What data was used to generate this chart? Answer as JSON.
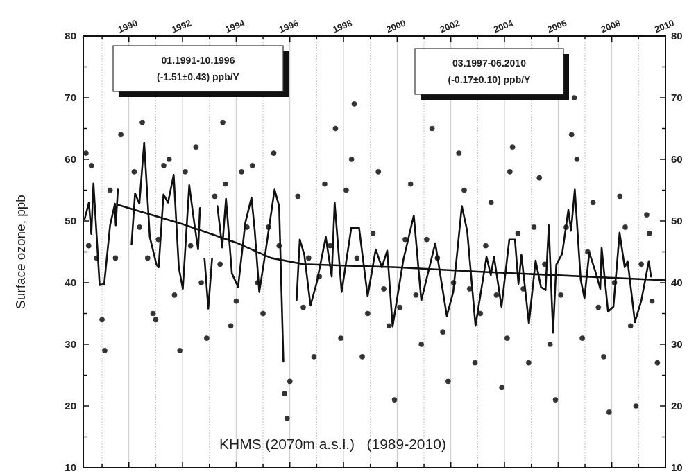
{
  "chart_data": {
    "type": "line",
    "ylabel": "Surface ozone, ppb",
    "annotations": [
      "01.1991-10.1996\n(-1.51±0.43) ppb/Y",
      "03.1997-06.2010\n(-0.17±0.10) ppb/Y",
      "KHMS (2070m a.s.l.)   (1989-2010)"
    ],
    "xlim": [
      1988.3,
      2010
    ],
    "xticks": [
      {
        "value": 1989,
        "label": null
      },
      1990,
      {
        "value": 1991,
        "label": null
      },
      1992,
      {
        "value": 1993,
        "label": null
      },
      1994,
      {
        "value": 1995,
        "label": null
      },
      1996,
      {
        "value": 1997,
        "label": null
      },
      1998,
      {
        "value": 1999,
        "label": null
      },
      2000,
      {
        "value": 2001,
        "label": null
      },
      2002,
      {
        "value": 2003,
        "label": null
      },
      2004,
      {
        "value": 2005,
        "label": null
      },
      2006,
      {
        "value": 2007,
        "label": null
      },
      2008,
      {
        "value": 2009,
        "label": null
      },
      2010
    ],
    "ylim": [
      10,
      80
    ],
    "yticks": [
      10,
      {
        "value": 15,
        "label": null
      },
      20,
      {
        "value": 25,
        "label": null
      },
      30,
      {
        "value": 35,
        "label": null
      },
      40,
      {
        "value": 45,
        "label": null
      },
      50,
      {
        "value": 55,
        "label": null
      },
      60,
      {
        "value": 65,
        "label": null
      },
      70,
      {
        "value": 75,
        "label": null
      },
      80
    ],
    "y2lim": [
      10,
      80
    ],
    "y2ticks": [
      10,
      {
        "value": 15,
        "label": null
      },
      20,
      {
        "value": 25,
        "label": null
      },
      30,
      {
        "value": 35,
        "label": null
      },
      40,
      {
        "value": 45,
        "label": null
      },
      50,
      {
        "value": 55,
        "label": null
      },
      60,
      {
        "value": 65,
        "label": null
      },
      70,
      {
        "value": 75,
        "label": null
      },
      80
    ],
    "grid": "x",
    "series": [
      {
        "type": "scatter",
        "marker": "circle",
        "color": "#333333",
        "x": [
          1988.4,
          1988.5,
          1988.6,
          1988.8,
          1989.0,
          1989.1,
          1989.3,
          1989.5,
          1989.7,
          1990.2,
          1990.4,
          1990.5,
          1990.7,
          1990.9,
          1991.0,
          1991.1,
          1991.3,
          1991.5,
          1991.7,
          1991.9,
          1992.1,
          1992.3,
          1992.5,
          1992.7,
          1992.9,
          1993.2,
          1993.4,
          1993.5,
          1993.6,
          1993.8,
          1994.0,
          1994.2,
          1994.4,
          1994.6,
          1994.8,
          1995.0,
          1995.2,
          1995.4,
          1995.6,
          1995.8,
          1995.9,
          1996.0,
          1996.3,
          1996.5,
          1996.7,
          1996.9,
          1997.1,
          1997.3,
          1997.5,
          1997.7,
          1997.9,
          1998.1,
          1998.3,
          1998.4,
          1998.5,
          1998.7,
          1998.9,
          1999.1,
          1999.3,
          1999.5,
          1999.7,
          1999.9,
          2000.1,
          2000.3,
          2000.5,
          2000.7,
          2000.9,
          2001.1,
          2001.3,
          2001.5,
          2001.7,
          2001.9,
          2002.1,
          2002.3,
          2002.5,
          2002.7,
          2002.9,
          2003.1,
          2003.3,
          2003.5,
          2003.7,
          2003.9,
          2004.1,
          2004.2,
          2004.3,
          2004.5,
          2004.7,
          2004.9,
          2005.1,
          2005.3,
          2005.5,
          2005.7,
          2005.9,
          2006.1,
          2006.3,
          2006.5,
          2006.6,
          2006.7,
          2006.9,
          2007.1,
          2007.3,
          2007.5,
          2007.7,
          2007.9,
          2008.1,
          2008.3,
          2008.5,
          2008.7,
          2008.9,
          2009.1,
          2009.3,
          2009.4,
          2009.5,
          2009.7
        ],
        "values": [
          61,
          46,
          59,
          44,
          34,
          29,
          55,
          44,
          64,
          58,
          49,
          66,
          44,
          35,
          34,
          47,
          59,
          60,
          38,
          29,
          58,
          46,
          62,
          40,
          31,
          54,
          43,
          66,
          56,
          33,
          37,
          58,
          49,
          59,
          40,
          35,
          49,
          61,
          46,
          22,
          18,
          24,
          54,
          36,
          44,
          28,
          41,
          56,
          46,
          65,
          31,
          55,
          60,
          69,
          44,
          28,
          35,
          48,
          58,
          39,
          33,
          21,
          36,
          47,
          56,
          38,
          30,
          47,
          65,
          44,
          32,
          24,
          40,
          61,
          55,
          39,
          27,
          35,
          46,
          53,
          38,
          23,
          31,
          58,
          62,
          48,
          39,
          27,
          49,
          57,
          43,
          30,
          21,
          38,
          49,
          64,
          70,
          60,
          31,
          45,
          53,
          36,
          28,
          19,
          40,
          54,
          49,
          33,
          20,
          43,
          51,
          48,
          37,
          27
        ]
      },
      {
        "marker": "none",
        "color": "#111111",
        "x": [
          1988.35,
          1988.51,
          1988.6,
          1988.68,
          1988.91,
          1989.08,
          1989.3,
          1989.48,
          1989.51,
          1989.59,
          1989.85,
          1990.1,
          1990.23,
          1990.39,
          1990.57,
          1990.78,
          1991.03,
          1991.11,
          1991.29,
          1991.46,
          1991.67,
          1991.86,
          1992.01,
          1992.25,
          1992.43,
          1992.58,
          1992.65,
          1992.74,
          1992.82,
          1992.96,
          1993.1,
          1993.2,
          1993.3,
          1993.48,
          1993.62,
          1993.84,
          1994.07,
          1994.34,
          1994.57,
          1994.69,
          1994.86,
          1995.09,
          1995.43,
          1995.6,
          1995.76,
          1996.0,
          1996.25,
          1996.37,
          1996.54,
          1996.77,
          1997.0,
          1997.34,
          1997.56,
          1997.67,
          1997.93,
          1998.29,
          1998.58,
          1998.9,
          1999.2,
          1999.43,
          1999.63,
          1999.83,
          2000.23,
          2000.62,
          2000.9,
          2001.42,
          2001.85,
          2002.09,
          2002.41,
          2002.61,
          2002.92,
          2003.33,
          2003.49,
          2003.61,
          2003.89,
          2004.18,
          2004.39,
          2004.52,
          2004.63,
          2004.91,
          2005.16,
          2005.36,
          2005.53,
          2005.65,
          2005.81,
          2005.93,
          2006.15,
          2006.38,
          2006.48,
          2006.62,
          2006.84,
          2006.98,
          2007.16,
          2007.41,
          2007.57,
          2007.62,
          2007.86,
          2008.06,
          2008.29,
          2008.48,
          2008.59,
          2008.86,
          2009.1,
          2009.38,
          2009.46
        ],
        "values": [
          50.3,
          53.0,
          47.9,
          56.1,
          39.6,
          39.8,
          49.3,
          52.8,
          49.3,
          55.1,
          null,
          46.2,
          54.5,
          52.8,
          62.7,
          47.4,
          42.9,
          42.5,
          54.3,
          53.0,
          57.5,
          42.5,
          39.0,
          55.8,
          49.9,
          45.4,
          52.1,
          null,
          43.9,
          35.8,
          43.9,
          null,
          52.4,
          45.7,
          53.6,
          41.5,
          39.3,
          49.7,
          53.8,
          48.5,
          38.5,
          44.9,
          55.1,
          52.4,
          27.2,
          null,
          37.1,
          47.0,
          44.5,
          36.3,
          40.0,
          47.4,
          41.0,
          53.0,
          38.5,
          48.9,
          48.9,
          37.8,
          45.4,
          42.5,
          45.2,
          32.9,
          43.7,
          50.9,
          37.1,
          46.4,
          34.6,
          38.5,
          52.4,
          48.4,
          33.0,
          44.2,
          41.2,
          44.2,
          36.1,
          47.0,
          47.0,
          39.8,
          44.5,
          33.4,
          43.6,
          39.3,
          38.8,
          49.3,
          31.9,
          42.9,
          44.7,
          51.8,
          48.4,
          55.1,
          40.5,
          37.5,
          44.9,
          41.5,
          39.0,
          45.7,
          35.3,
          36.1,
          48.1,
          42.5,
          43.5,
          33.6,
          37.1,
          43.5,
          41.0
        ]
      },
      {
        "marker": "none",
        "color": "#111111",
        "x": [
          1989.6,
          1992.0,
          1994.0,
          1995.3,
          1996.5,
          2000.0,
          2003.0,
          2010.0
        ],
        "values": [
          52.6,
          49.5,
          46.5,
          44.0,
          43.0,
          42.5,
          41.8,
          40.4
        ]
      }
    ]
  }
}
